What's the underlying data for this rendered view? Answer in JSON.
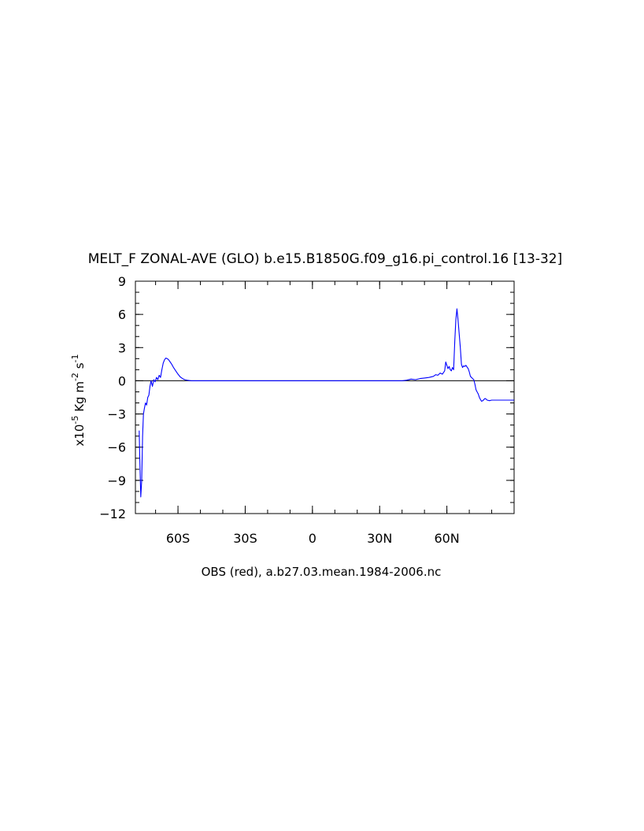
{
  "chart_data": {
    "type": "line",
    "title": "MELT_F ZONAL-AVE (GLO) b.e15.B1850G.f09_g16.pi_control.16 [13-32]",
    "xlabel": "OBS (red), a.b27.03.mean.1984-2006.nc",
    "ylabel_main": "x10",
    "ylabel_exp": "-5",
    "ylabel_unit1": " Kg m",
    "ylabel_exp2": "-2",
    "ylabel_unit2": " s",
    "ylabel_exp3": "-1",
    "xlim": [
      -79,
      90
    ],
    "ylim": [
      -12,
      9
    ],
    "xticks": [
      {
        "value": -60,
        "label": "60S"
      },
      {
        "value": -30,
        "label": "30S"
      },
      {
        "value": 0,
        "label": "0"
      },
      {
        "value": 30,
        "label": "30N"
      },
      {
        "value": 60,
        "label": "60N"
      }
    ],
    "yticks": [
      {
        "value": 9,
        "label": "9"
      },
      {
        "value": 6,
        "label": "6"
      },
      {
        "value": 3,
        "label": "3"
      },
      {
        "value": 0,
        "label": "0"
      },
      {
        "value": -3,
        "label": "−3"
      },
      {
        "value": -6,
        "label": "−6"
      },
      {
        "value": -9,
        "label": "−9"
      },
      {
        "value": -12,
        "label": "−12"
      }
    ],
    "zero_line": true,
    "series": [
      {
        "color": "#0000ff",
        "x": [
          -77.3,
          -77.0,
          -76.6,
          -76.2,
          -75.8,
          -75.4,
          -75.0,
          -74.5,
          -74.0,
          -73.5,
          -73.0,
          -72.5,
          -72.0,
          -71.4,
          -70.8,
          -70.2,
          -69.6,
          -69.0,
          -68.4,
          -67.8,
          -67.2,
          -66.6,
          -66.0,
          -65.4,
          -64.8,
          -64.2,
          -63.5,
          -62.8,
          -62.0,
          -61.0,
          -60.0,
          -59.0,
          -58.0,
          -57.0,
          -56.0,
          -55.0,
          -54.0,
          -53.0,
          -52.0,
          -50.0,
          -45.0,
          -40.0,
          -30.0,
          -20.0,
          -10.0,
          0.0,
          10.0,
          20.0,
          30.0,
          40.0,
          42.0,
          44.0,
          46.0,
          48.0,
          50.0,
          52.0,
          54.0,
          55.0,
          56.0,
          57.0,
          58.0,
          59.0,
          59.5,
          60.0,
          60.5,
          61.0,
          61.5,
          62.0,
          62.5,
          63.0,
          63.5,
          64.0,
          64.5,
          65.0,
          65.5,
          66.0,
          66.5,
          67.0,
          67.5,
          68.0,
          68.5,
          69.0,
          69.5,
          70.0,
          70.5,
          71.0,
          71.5,
          72.0,
          72.5,
          73.0,
          73.5,
          74.0,
          74.5,
          75.0,
          75.5,
          76.0,
          76.5,
          77.0,
          77.5,
          78.0,
          79.0,
          80.0,
          81.0,
          82.0,
          83.0,
          84.0,
          85.0,
          86.0,
          87.0,
          88.0,
          89.0,
          90.0
        ],
        "y": [
          -4.5,
          -7.5,
          -10.5,
          -9.0,
          -5.0,
          -3.0,
          -2.5,
          -2.0,
          -2.2,
          -1.5,
          -1.3,
          -0.5,
          0.0,
          -0.5,
          0.1,
          -0.1,
          0.3,
          0.1,
          0.5,
          0.3,
          1.0,
          1.6,
          1.9,
          2.05,
          2.0,
          1.9,
          1.7,
          1.5,
          1.2,
          0.9,
          0.6,
          0.35,
          0.2,
          0.1,
          0.05,
          0.02,
          0.0,
          0.0,
          0.0,
          0.0,
          0.0,
          0.0,
          0.0,
          0.0,
          0.0,
          0.0,
          0.0,
          0.0,
          0.0,
          0.0,
          0.05,
          0.15,
          0.1,
          0.2,
          0.25,
          0.3,
          0.4,
          0.55,
          0.5,
          0.7,
          0.6,
          0.9,
          1.7,
          1.4,
          1.1,
          1.3,
          1.0,
          0.9,
          1.2,
          1.0,
          3.5,
          5.5,
          6.5,
          5.5,
          4.2,
          3.0,
          1.5,
          1.2,
          1.35,
          1.3,
          1.4,
          1.25,
          1.1,
          0.8,
          0.4,
          0.3,
          0.2,
          0.1,
          -0.3,
          -0.8,
          -1.0,
          -1.2,
          -1.5,
          -1.7,
          -1.85,
          -1.8,
          -1.7,
          -1.6,
          -1.65,
          -1.75,
          -1.8,
          -1.75,
          -1.75,
          -1.75,
          -1.75,
          -1.75,
          -1.75,
          -1.75,
          -1.75,
          -1.75,
          -1.75,
          -1.75
        ]
      }
    ]
  }
}
